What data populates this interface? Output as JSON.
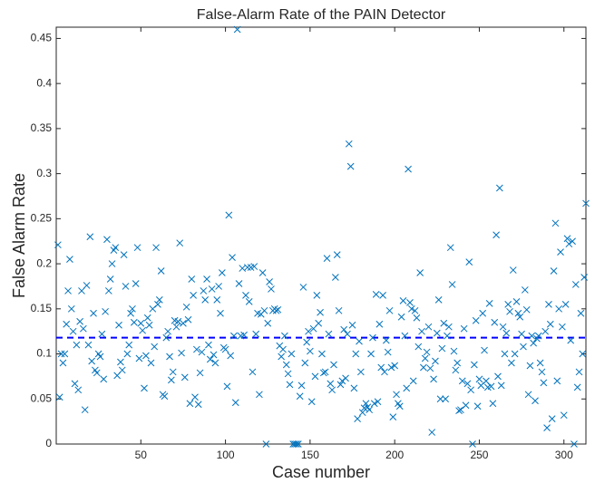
{
  "chart_data": {
    "type": "scatter",
    "title": "False-Alarm Rate of the PAIN Detector",
    "x_label": "Case number",
    "y_label": "False Alarm Rate",
    "color": "#0072bd",
    "reference_line": {
      "value": 0.118,
      "color": "#0000ff",
      "style": "dashed"
    },
    "xlim": [
      0,
      313
    ],
    "xticks": [
      50,
      100,
      150,
      200,
      250,
      300
    ],
    "ylim": [
      0,
      0.4625
    ],
    "yticks": [
      0,
      0.05,
      0.1,
      0.15,
      0.2,
      0.25,
      0.3,
      0.35,
      0.4,
      0.45
    ],
    "grid": false,
    "x": [
      1,
      2,
      3,
      4,
      5,
      6,
      7,
      8,
      9,
      10,
      11,
      12,
      13,
      14,
      15,
      16,
      17,
      18,
      19,
      20,
      21,
      22,
      23,
      24,
      25,
      26,
      27,
      28,
      29,
      30,
      31,
      32,
      33,
      34,
      35,
      36,
      37,
      38,
      39,
      40,
      41,
      42,
      43,
      44,
      45,
      46,
      47,
      48,
      49,
      50,
      51,
      52,
      53,
      54,
      55,
      56,
      57,
      58,
      59,
      60,
      61,
      62,
      63,
      64,
      65,
      66,
      67,
      68,
      69,
      70,
      71,
      72,
      73,
      74,
      75,
      76,
      77,
      78,
      79,
      80,
      81,
      82,
      83,
      84,
      85,
      86,
      87,
      88,
      89,
      90,
      91,
      92,
      93,
      94,
      95,
      96,
      97,
      98,
      99,
      100,
      101,
      102,
      103,
      104,
      105,
      106,
      107,
      108,
      109,
      110,
      111,
      112,
      113,
      114,
      115,
      116,
      117,
      118,
      119,
      120,
      121,
      122,
      123,
      124,
      125,
      126,
      127,
      128,
      129,
      130,
      131,
      132,
      133,
      134,
      135,
      136,
      137,
      138,
      139,
      140,
      141,
      142,
      143,
      144,
      145,
      146,
      147,
      148,
      149,
      150,
      151,
      152,
      153,
      154,
      155,
      156,
      157,
      158,
      159,
      160,
      161,
      162,
      163,
      164,
      165,
      166,
      167,
      168,
      169,
      170,
      171,
      172,
      173,
      174,
      175,
      176,
      177,
      178,
      179,
      180,
      181,
      182,
      183,
      184,
      185,
      186,
      187,
      188,
      189,
      190,
      191,
      192,
      193,
      194,
      195,
      196,
      197,
      198,
      199,
      200,
      201,
      202,
      203,
      204,
      205,
      206,
      207,
      208,
      209,
      210,
      211,
      212,
      213,
      214,
      215,
      216,
      217,
      218,
      219,
      220,
      221,
      222,
      223,
      224,
      225,
      226,
      227,
      228,
      229,
      230,
      231,
      232,
      233,
      234,
      235,
      236,
      237,
      238,
      239,
      240,
      241,
      242,
      243,
      244,
      245,
      246,
      247,
      248,
      249,
      250,
      251,
      252,
      253,
      254,
      255,
      256,
      257,
      258,
      259,
      260,
      261,
      262,
      263,
      264,
      265,
      266,
      267,
      268,
      269,
      270,
      271,
      272,
      273,
      274,
      275,
      276,
      277,
      278,
      279,
      280,
      281,
      282,
      283,
      284,
      285,
      286,
      287,
      288,
      289,
      290,
      291,
      292,
      293,
      294,
      295,
      296,
      297,
      298,
      299,
      300,
      301,
      302,
      303,
      304,
      305,
      306,
      307,
      308,
      309,
      310,
      311,
      312,
      313
    ],
    "values": [
      0.221,
      0.052,
      0.1,
      0.09,
      0.1,
      0.133,
      0.17,
      0.205,
      0.15,
      0.125,
      0.067,
      0.11,
      0.06,
      0.136,
      0.17,
      0.128,
      0.038,
      0.176,
      0.11,
      0.23,
      0.092,
      0.145,
      0.082,
      0.079,
      0.1,
      0.097,
      0.122,
      0.072,
      0.147,
      0.227,
      0.17,
      0.183,
      0.2,
      0.215,
      0.218,
      0.076,
      0.132,
      0.091,
      0.082,
      0.21,
      0.175,
      0.1,
      0.11,
      0.145,
      0.15,
      0.135,
      0.178,
      0.218,
      0.095,
      0.134,
      0.126,
      0.062,
      0.098,
      0.14,
      0.132,
      0.09,
      0.15,
      0.108,
      0.218,
      0.155,
      0.16,
      0.192,
      0.055,
      0.053,
      0.118,
      0.125,
      0.097,
      0.071,
      0.08,
      0.137,
      0.13,
      0.136,
      0.223,
      0.101,
      0.134,
      0.074,
      0.152,
      0.138,
      0.045,
      0.183,
      0.165,
      0.052,
      0.105,
      0.044,
      0.079,
      0.102,
      0.17,
      0.16,
      0.183,
      0.11,
      0.094,
      0.172,
      0.099,
      0.09,
      0.16,
      0.175,
      0.145,
      0.19,
      0.107,
      0.105,
      0.064,
      0.254,
      0.098,
      0.207,
      0.12,
      0.046,
      0.46,
      0.178,
      0.12,
      0.195,
      0.121,
      0.165,
      0.196,
      0.158,
      0.196,
      0.08,
      0.197,
      0.122,
      0.145,
      0.055,
      0.144,
      0.19,
      0.148,
      0,
      0.134,
      0.18,
      0.172,
      0.148,
      0.15,
      0.148,
      0.149,
      0.109,
      0.097,
      0.105,
      0.12,
      0.088,
      0.078,
      0.066,
      0.1,
      0,
      0,
      0,
      0,
      0.053,
      0.065,
      0.174,
      0.09,
      0.113,
      0.125,
      0.103,
      0.047,
      0.128,
      0.075,
      0.165,
      0.134,
      0.146,
      0.1,
      0.079,
      0.08,
      0.206,
      0.122,
      0.067,
      0.06,
      0.088,
      0.185,
      0.21,
      0.148,
      0.066,
      0.07,
      0.127,
      0.073,
      0.122,
      0.333,
      0.308,
      0.132,
      0.062,
      0.1,
      0.028,
      0.114,
      0.08,
      0.035,
      0.04,
      0.045,
      0.041,
      0.038,
      0.1,
      0.118,
      0.045,
      0.166,
      0.047,
      0.133,
      0.085,
      0.165,
      0.08,
      0.115,
      0.102,
      0.148,
      0.085,
      0.03,
      0.087,
      0.055,
      0.045,
      0.042,
      0.141,
      0.159,
      0.12,
      0.062,
      0.305,
      0.157,
      0.15,
      0.07,
      0.148,
      0.14,
      0.108,
      0.19,
      0.125,
      0.085,
      0.095,
      0.102,
      0.13,
      0.084,
      0.013,
      0.072,
      0.092,
      0.123,
      0.16,
      0.05,
      0.106,
      0.134,
      0.05,
      0.12,
      0.13,
      0.218,
      0.177,
      0.103,
      0.082,
      0.09,
      0.037,
      0.038,
      0.07,
      0.128,
      0.043,
      0.067,
      0.202,
      0.06,
      0,
      0.088,
      0.137,
      0.042,
      0.072,
      0.065,
      0.145,
      0.104,
      0.07,
      0.063,
      0.156,
      0.064,
      0.045,
      0.135,
      0.232,
      0.075,
      0.284,
      0.065,
      0.13,
      0.1,
      0.123,
      0.155,
      0.147,
      0.09,
      0.193,
      0.1,
      0.158,
      0.145,
      0.141,
      0.122,
      0.108,
      0.171,
      0.149,
      0.055,
      0.087,
      0.12,
      0.112,
      0.048,
      0.117,
      0.12,
      0.09,
      0.08,
      0.068,
      0.125,
      0.018,
      0.155,
      0.133,
      0.028,
      0.192,
      0.245,
      0.07,
      0.15,
      0.213,
      0.13,
      0.032,
      0.155,
      0.228,
      0.222,
      0.115,
      0.225,
      0,
      0.177,
      0.063,
      0.08,
      0.145,
      0.1,
      0.185,
      0.267
    ]
  }
}
